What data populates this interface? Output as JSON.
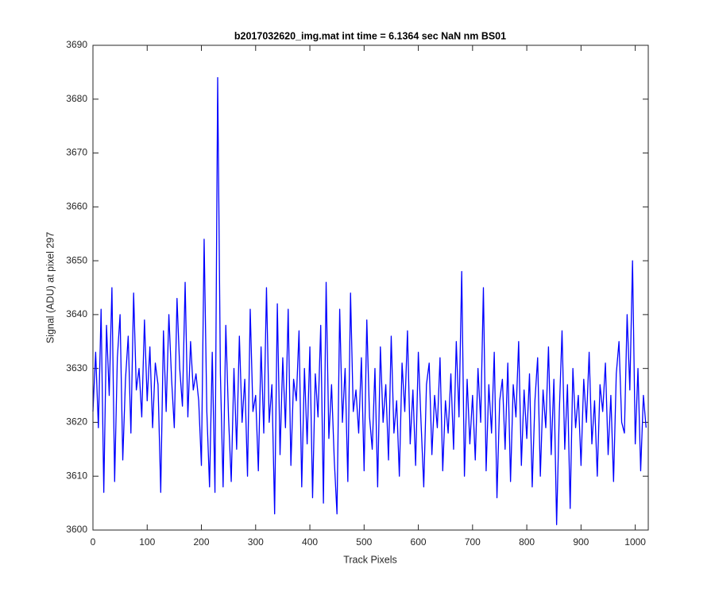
{
  "chart_data": {
    "type": "line",
    "title": "b2017032620_img.mat int time = 6.1364 sec  NaN nm BS01",
    "xlabel": "Track Pixels",
    "ylabel": "Signal (ADU) at pixel 297",
    "color": "#0000ff",
    "xlim": [
      0,
      1024
    ],
    "ylim": [
      3600,
      3690
    ],
    "xticks": [
      0,
      100,
      200,
      300,
      400,
      500,
      600,
      700,
      800,
      900,
      1000
    ],
    "yticks": [
      3600,
      3610,
      3620,
      3630,
      3640,
      3650,
      3660,
      3670,
      3680,
      3690
    ],
    "x": [
      0,
      5,
      10,
      15,
      20,
      25,
      30,
      35,
      40,
      45,
      50,
      55,
      60,
      65,
      70,
      75,
      80,
      85,
      90,
      95,
      100,
      105,
      110,
      115,
      120,
      125,
      130,
      135,
      140,
      145,
      150,
      155,
      160,
      165,
      170,
      175,
      180,
      185,
      190,
      195,
      200,
      205,
      210,
      215,
      220,
      225,
      230,
      235,
      240,
      245,
      250,
      255,
      260,
      265,
      270,
      275,
      280,
      285,
      290,
      295,
      300,
      305,
      310,
      315,
      320,
      325,
      330,
      335,
      340,
      345,
      350,
      355,
      360,
      365,
      370,
      375,
      380,
      385,
      390,
      395,
      400,
      405,
      410,
      415,
      420,
      425,
      430,
      435,
      440,
      445,
      450,
      455,
      460,
      465,
      470,
      475,
      480,
      485,
      490,
      495,
      500,
      505,
      510,
      515,
      520,
      525,
      530,
      535,
      540,
      545,
      550,
      555,
      560,
      565,
      570,
      575,
      580,
      585,
      590,
      595,
      600,
      605,
      610,
      615,
      620,
      625,
      630,
      635,
      640,
      645,
      650,
      655,
      660,
      665,
      670,
      675,
      680,
      685,
      690,
      695,
      700,
      705,
      710,
      715,
      720,
      725,
      730,
      735,
      740,
      745,
      750,
      755,
      760,
      765,
      770,
      775,
      780,
      785,
      790,
      795,
      800,
      805,
      810,
      815,
      820,
      825,
      830,
      835,
      840,
      845,
      850,
      855,
      860,
      865,
      870,
      875,
      880,
      885,
      890,
      895,
      900,
      905,
      910,
      915,
      920,
      925,
      930,
      935,
      940,
      945,
      950,
      955,
      960,
      965,
      970,
      975,
      980,
      985,
      990,
      995,
      1000,
      1005,
      1010,
      1015,
      1020
    ],
    "values": [
      3622,
      3633,
      3619,
      3641,
      3607,
      3638,
      3625,
      3645,
      3609,
      3632,
      3640,
      3613,
      3628,
      3636,
      3618,
      3644,
      3626,
      3630,
      3621,
      3639,
      3624,
      3634,
      3619,
      3631,
      3627,
      3607,
      3637,
      3622,
      3640,
      3628,
      3619,
      3643,
      3630,
      3623,
      3646,
      3621,
      3635,
      3626,
      3629,
      3624,
      3612,
      3654,
      3622,
      3608,
      3633,
      3607,
      3684,
      3629,
      3608,
      3638,
      3621,
      3609,
      3630,
      3615,
      3636,
      3620,
      3628,
      3610,
      3641,
      3622,
      3625,
      3611,
      3634,
      3618,
      3645,
      3620,
      3627,
      3603,
      3642,
      3614,
      3632,
      3619,
      3641,
      3612,
      3628,
      3624,
      3637,
      3608,
      3630,
      3616,
      3634,
      3606,
      3629,
      3621,
      3638,
      3605,
      3646,
      3617,
      3627,
      3613,
      3603,
      3641,
      3620,
      3630,
      3609,
      3644,
      3622,
      3626,
      3618,
      3632,
      3611,
      3639,
      3621,
      3615,
      3630,
      3608,
      3634,
      3620,
      3627,
      3613,
      3636,
      3618,
      3624,
      3610,
      3631,
      3622,
      3637,
      3616,
      3626,
      3612,
      3633,
      3620,
      3608,
      3627,
      3631,
      3614,
      3625,
      3619,
      3632,
      3611,
      3624,
      3618,
      3629,
      3615,
      3635,
      3621,
      3648,
      3610,
      3628,
      3616,
      3625,
      3613,
      3630,
      3620,
      3645,
      3611,
      3627,
      3618,
      3633,
      3606,
      3624,
      3628,
      3615,
      3631,
      3609,
      3627,
      3621,
      3635,
      3612,
      3626,
      3617,
      3629,
      3608,
      3624,
      3632,
      3610,
      3626,
      3619,
      3634,
      3614,
      3628,
      3601,
      3622,
      3637,
      3615,
      3627,
      3604,
      3630,
      3619,
      3625,
      3612,
      3628,
      3620,
      3633,
      3616,
      3624,
      3610,
      3627,
      3622,
      3631,
      3614,
      3625,
      3609,
      3629,
      3635,
      3620,
      3618,
      3640,
      3626,
      3650,
      3616,
      3630,
      3611,
      3625,
      3619
    ]
  }
}
